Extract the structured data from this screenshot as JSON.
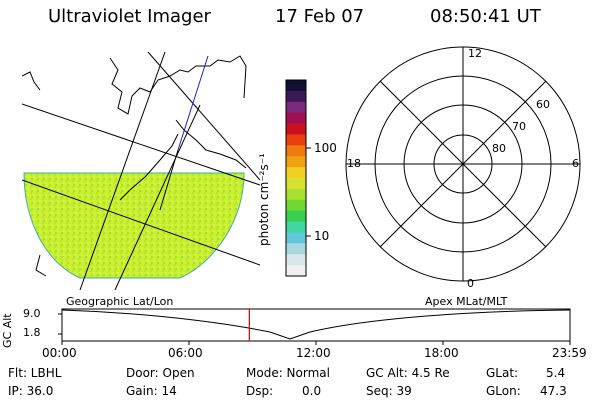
{
  "header": {
    "instrument": "Ultraviolet Imager",
    "date": "17 Feb 07",
    "time": "08:50:41 UT"
  },
  "colorbar": {
    "unit_label": "photon cm⁻²s⁻¹",
    "ticks": [
      "100",
      "10"
    ],
    "colors": [
      "#111133",
      "#3a1a55",
      "#7a2a7a",
      "#a01050",
      "#cc1020",
      "#e84010",
      "#f07a10",
      "#f0a010",
      "#f0d020",
      "#d8e030",
      "#a8e030",
      "#70d830",
      "#38d050",
      "#40d8a0",
      "#60c8d8",
      "#a8d8e0",
      "#d8e8ea",
      "#f0f0f0"
    ]
  },
  "polar": {
    "labels": {
      "top": "12",
      "left": "18",
      "right": "6",
      "bottom": "0"
    },
    "ring_labels": [
      "60",
      "70",
      "80"
    ]
  },
  "map": {
    "fill_color": "#c8f030"
  },
  "timeline": {
    "y_label": "GC Alt",
    "y_ticks": [
      "9.0",
      "1.8"
    ],
    "left_title": "Geographic Lat/Lon",
    "right_title": "Apex  MLat/MLT",
    "x_ticks": [
      "00:00",
      "06:00",
      "12:00",
      "18:00",
      "23:59"
    ],
    "marker_hour": 8.85
  },
  "footer": {
    "filter": "Flt: LBHL",
    "ip": "IP: 36.0",
    "door": "Door: Open",
    "gain": "Gain: 14",
    "mode": "Mode: Normal",
    "dsp": "Dsp:",
    "dsp_value": "0.0",
    "gc_alt": "GC Alt: 4.5 Re",
    "seq": "Seq: 39",
    "glat": "GLat:",
    "glat_value": "5.4",
    "glon": "GLon:",
    "glon_value": "47.3"
  }
}
